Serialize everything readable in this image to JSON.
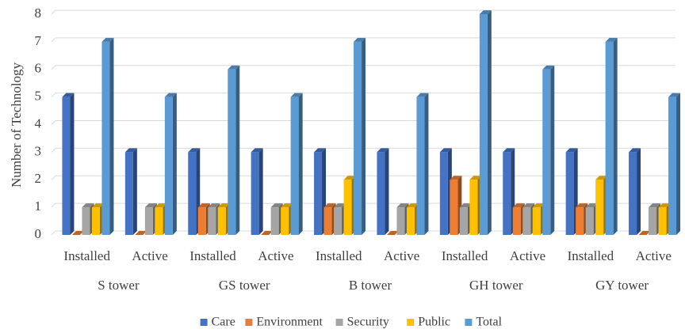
{
  "chart_data": {
    "type": "bar",
    "y_label": "Number of Technology",
    "categories": [
      "Installed",
      "Active",
      "Installed",
      "Active",
      "Installed",
      "Active",
      "Installed",
      "Active",
      "Installed",
      "Active"
    ],
    "groups": [
      "S tower",
      "GS tower",
      "B tower",
      "GH tower",
      "GY tower"
    ],
    "series": [
      {
        "name": "Care",
        "color": "#4472c4",
        "values": [
          5,
          3,
          3,
          3,
          3,
          3,
          3,
          3,
          3,
          3
        ]
      },
      {
        "name": "Environment",
        "color": "#ed7d31",
        "values": [
          0,
          0,
          1,
          0,
          1,
          0,
          2,
          1,
          1,
          0
        ]
      },
      {
        "name": "Security",
        "color": "#a5a5a5",
        "values": [
          1,
          1,
          1,
          1,
          1,
          1,
          1,
          1,
          1,
          1
        ]
      },
      {
        "name": "Public",
        "color": "#ffc000",
        "values": [
          1,
          1,
          1,
          1,
          2,
          1,
          2,
          1,
          2,
          1
        ]
      },
      {
        "name": "Total",
        "color": "#5b9bd5",
        "values": [
          7,
          5,
          6,
          5,
          7,
          5,
          8,
          6,
          7,
          5
        ]
      }
    ],
    "ylim": [
      0,
      8
    ],
    "yticks": [
      0,
      1,
      2,
      3,
      4,
      5,
      6,
      7,
      8
    ],
    "grid": true,
    "legend": "bottom"
  }
}
